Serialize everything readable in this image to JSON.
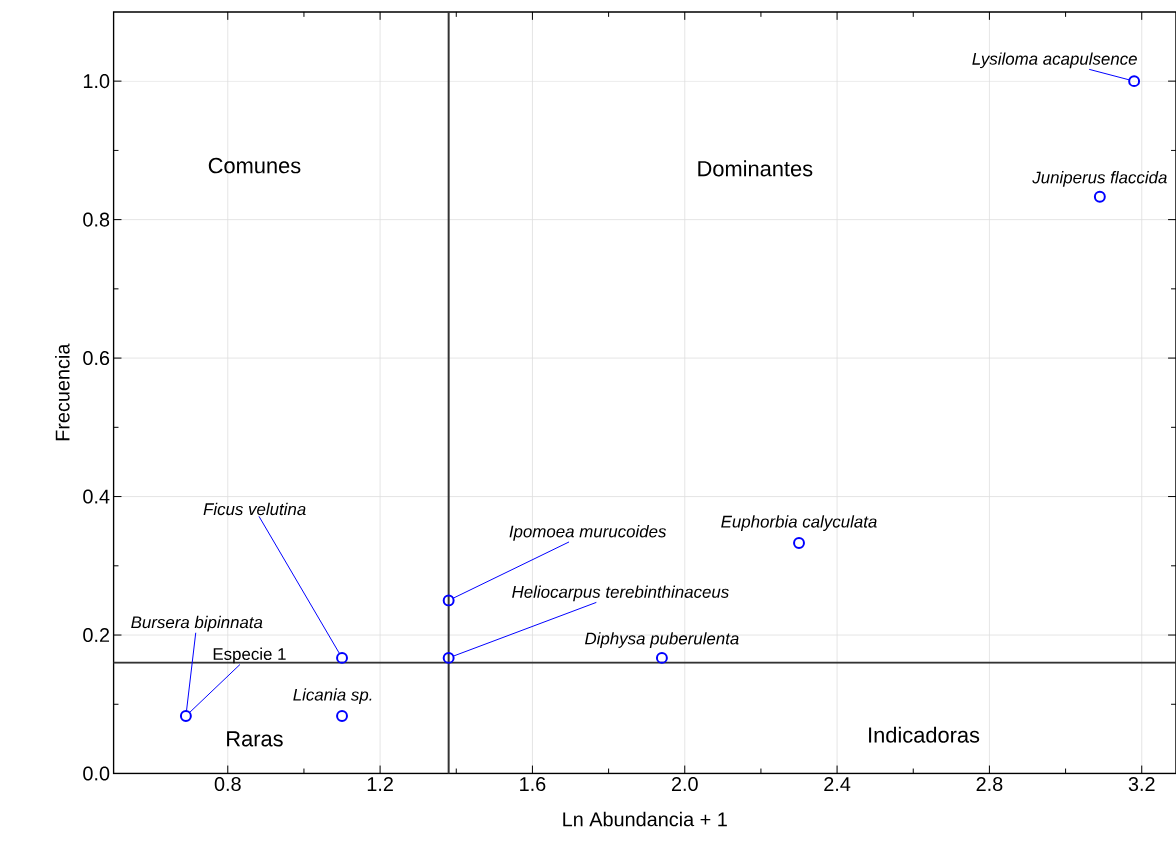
{
  "chart_data": {
    "type": "scatter",
    "xlabel": "Ln Abundancia + 1",
    "ylabel": "Frecuencia",
    "x": [
      3.18,
      3.09,
      2.3,
      1.94,
      1.38,
      1.38,
      1.1,
      1.1,
      0.69
    ],
    "series": [
      {
        "color": "#0000ff",
        "values": [
          1.0,
          0.833,
          0.333,
          0.167,
          0.25,
          0.167,
          0.167,
          0.083,
          0.083
        ]
      }
    ],
    "xlim": [
      0.5,
      3.29
    ],
    "ylim": [
      0,
      1.1
    ],
    "xticks": [
      0.8,
      1.2,
      1.6,
      {
        "value": 2.0,
        "label": "2.0"
      },
      2.4,
      2.8,
      3.2
    ],
    "yticks": [
      {
        "value": 0,
        "label": "0.0"
      },
      0.2,
      0.4,
      0.6,
      0.8,
      {
        "value": 1.0,
        "label": "1.0"
      }
    ],
    "grid": true,
    "marker": "circle",
    "ref_lines": [
      {
        "axis": "x",
        "value": 1.38,
        "color": "#333333"
      },
      {
        "axis": "y",
        "value": 0.16,
        "color": "#333333"
      }
    ],
    "annotations": [
      "Comunes",
      "Dominantes",
      "Raras",
      "Indicadoras",
      {
        "text": "*Lysiloma acapulsence*",
        "x": 3.18,
        "y": 1.0
      },
      {
        "text": "*Juniperus flaccida*",
        "x": 3.09,
        "y": 0.833
      },
      {
        "text": "*Euphorbia calyculata*",
        "x": 2.3,
        "y": 0.333
      },
      {
        "text": "*Diphysa puberulenta*",
        "x": 1.94,
        "y": 0.167
      },
      {
        "text": "*Ipomoea murucoides*",
        "x": 1.38,
        "y": 0.25
      },
      {
        "text": "*Heliocarpus terebinthinaceus*",
        "x": 1.38,
        "y": 0.167
      },
      {
        "text": "*Ficus velutina*",
        "x": 1.1,
        "y": 0.167
      },
      {
        "text": "*Licania sp.*",
        "x": 1.1,
        "y": 0.083
      },
      {
        "text": "*Bursera bipinnata*",
        "x": 0.69,
        "y": 0.083
      },
      {
        "text": "Especie 1",
        "x": 0.69,
        "y": 0.083
      }
    ]
  }
}
